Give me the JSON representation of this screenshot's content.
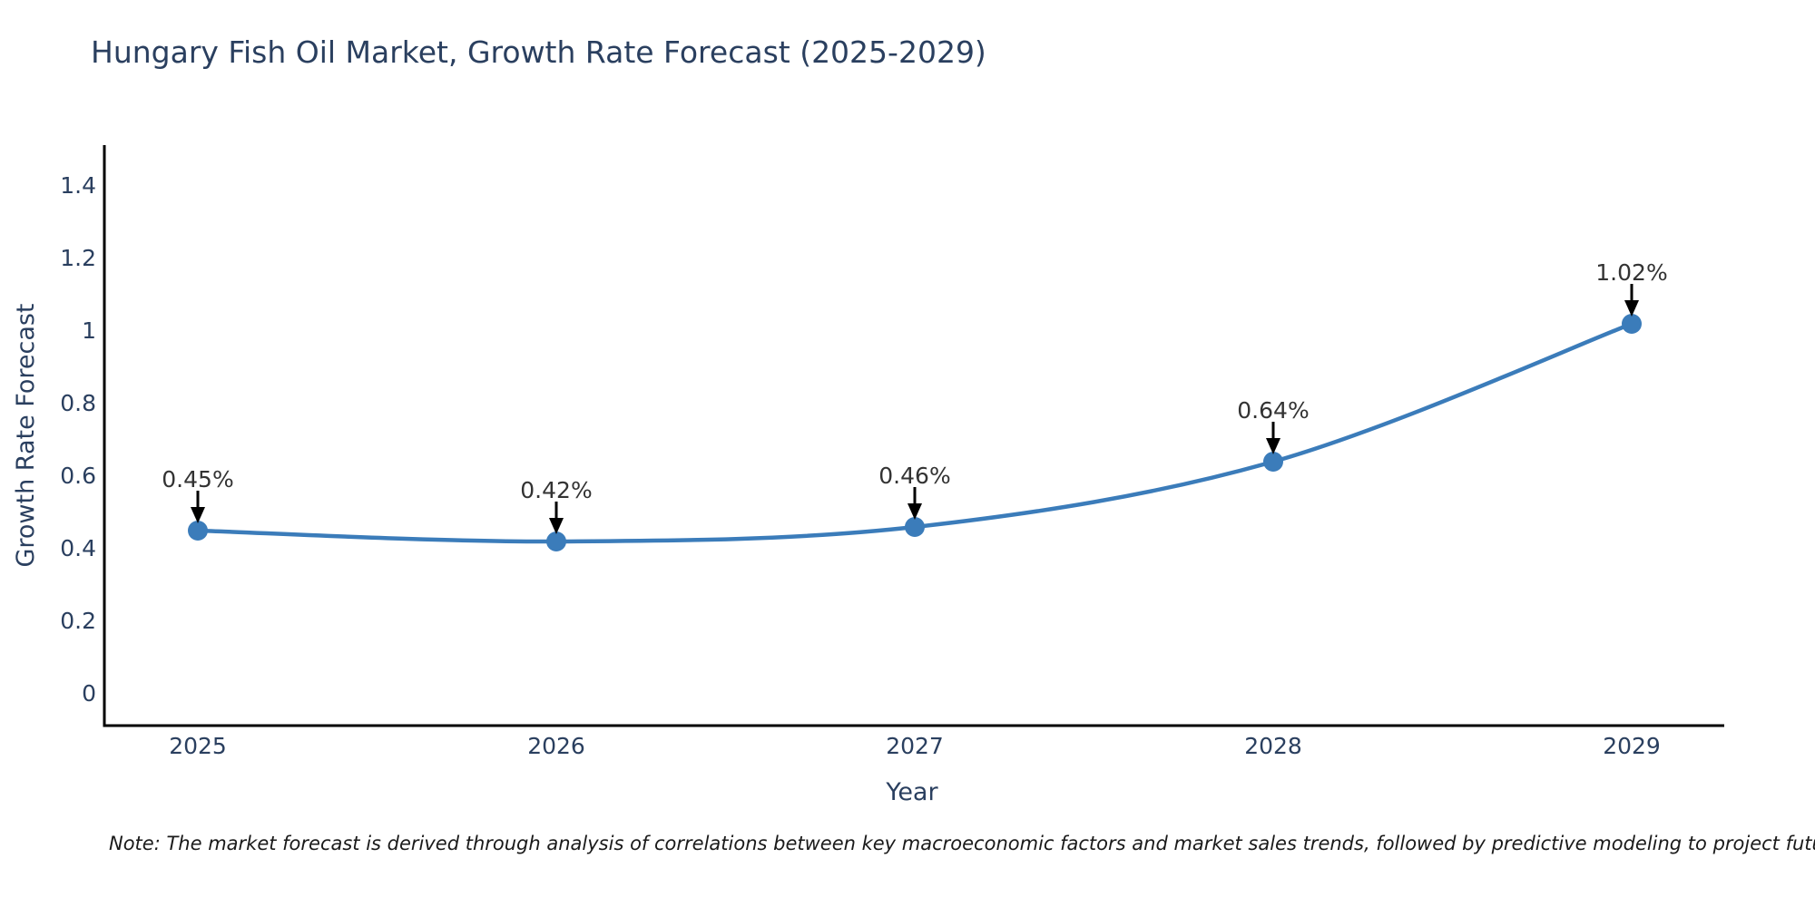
{
  "title": "Hungary Fish Oil Market, Growth Rate Forecast (2025-2029)",
  "note": "Note: The market forecast is derived through analysis of correlations between key macroeconomic factors and market sales trends, followed by predictive modeling to project future sales",
  "chart_data": {
    "type": "line",
    "line_shape": "spline",
    "markers": true,
    "x": [
      2025,
      2026,
      2027,
      2028,
      2029
    ],
    "values": [
      0.45,
      0.42,
      0.46,
      0.64,
      1.02
    ],
    "point_labels": [
      "0.45%",
      "0.42%",
      "0.46%",
      "0.64%",
      "1.02%"
    ],
    "title": "Hungary Fish Oil Market, Growth Rate Forecast (2025-2029)",
    "xlabel": "Year",
    "ylabel": "Growth Rate Forecast",
    "xticks": [
      "2025",
      "2026",
      "2027",
      "2028",
      "2029"
    ],
    "yticks": [
      0,
      0.2,
      0.4,
      0.6,
      0.8,
      1,
      1.2,
      1.4
    ],
    "ylim": [
      -0.09,
      1.51
    ],
    "grid": false,
    "legend": "none",
    "colors": {
      "line": "#3b7cba",
      "marker": "#3b7cba",
      "axis": "#000000",
      "arrow": "#000000",
      "annotation_text": "#333333",
      "tick_text": "#2a3f5f",
      "title_text": "#2a3f5f",
      "background": "#ffffff"
    }
  }
}
